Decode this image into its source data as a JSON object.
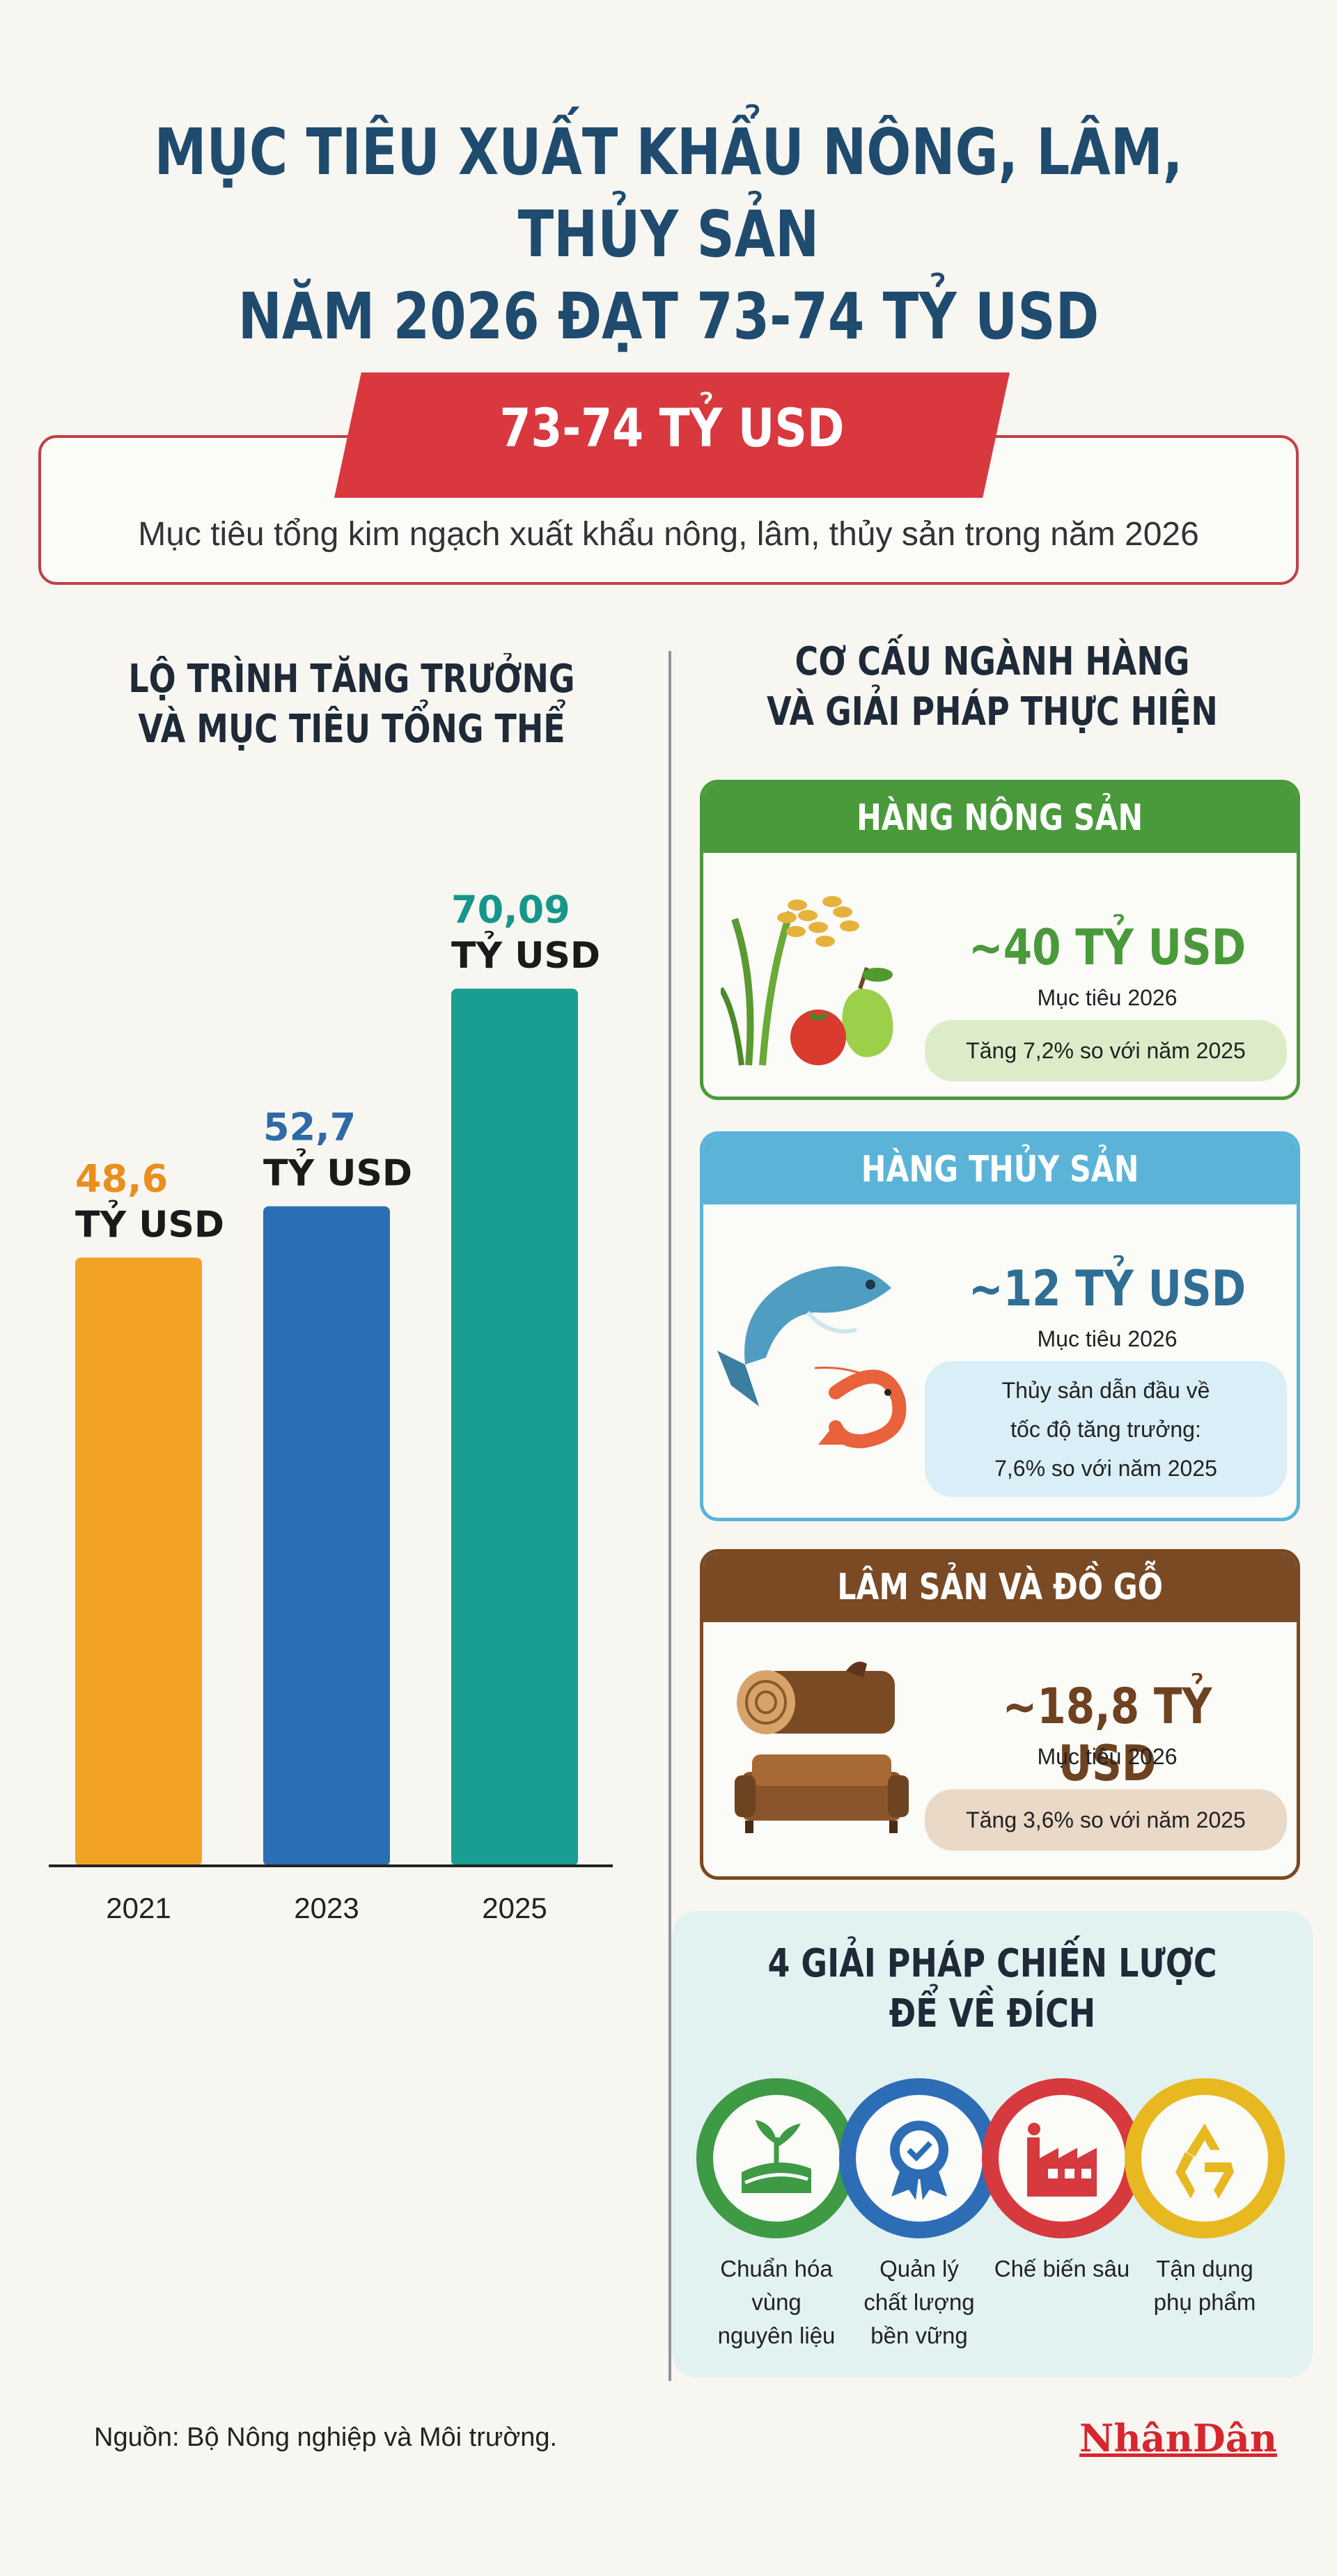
{
  "title_line1": "MỤC TIÊU XUẤT KHẨU NÔNG, LÂM, THỦY SẢN",
  "title_line2": "NĂM 2026 ĐẠT 73-74 TỶ USD",
  "target": {
    "value": "73-74 TỶ USD",
    "description": "Mục tiêu tổng kim ngạch xuất khẩu nông, lâm, thủy sản trong năm 2026"
  },
  "left_section": {
    "title_line1": "LỘ TRÌNH TĂNG TRƯỞNG",
    "title_line2": "VÀ MỤC TIÊU TỔNG THỂ"
  },
  "chart_data": {
    "type": "bar",
    "categories": [
      "2021",
      "2023",
      "2025"
    ],
    "values": [
      48.6,
      52.7,
      70.09
    ],
    "value_labels": [
      "48,6",
      "52,7",
      "70,09"
    ],
    "unit_label": "TỶ USD",
    "colors": [
      "#f2a324",
      "#2a6fb3",
      "#1a9e92"
    ],
    "value_colors": [
      "#e88f1e",
      "#2f6aa8",
      "#16968a"
    ],
    "ylim": [
      0,
      70.09
    ],
    "grid": false,
    "title": "",
    "xlabel": "",
    "ylabel": ""
  },
  "right_section": {
    "title_line1": "CƠ CẤU NGÀNH HÀNG",
    "title_line2": "VÀ GIẢI PHÁP THỰC HIỆN"
  },
  "cards": [
    {
      "header": "HÀNG NÔNG SẢN",
      "value": "~40 TỶ USD",
      "sub": "Mục tiêu 2026",
      "note_lines": [
        "Tăng 7,2% so với năm 2025"
      ],
      "color": "#4a9a3b",
      "icon": "rice-fruit-icon"
    },
    {
      "header": "HÀNG THỦY SẢN",
      "value": "~12 TỶ USD",
      "sub": "Mục tiêu 2026",
      "note_lines": [
        "Thủy sản dẫn đầu về",
        "tốc độ tăng trưởng:",
        "7,6% so với năm 2025"
      ],
      "color": "#5bb4d8",
      "value_color": "#2f6e95",
      "icon": "fish-shrimp-icon"
    },
    {
      "header": "LÂM SẢN VÀ ĐỒ GỖ",
      "value": "~18,8 TỶ USD",
      "sub": "Mục tiêu 2026",
      "note_lines": [
        "Tăng 3,6% so với năm 2025"
      ],
      "color": "#7a4a24",
      "icon": "log-sofa-icon"
    }
  ],
  "solutions": {
    "title_line1": "4 GIẢI PHÁP CHIẾN LƯỢC",
    "title_line2": "ĐỂ VỀ ĐÍCH",
    "items": [
      {
        "label_lines": [
          "Chuẩn hóa",
          "vùng",
          "nguyên liệu"
        ],
        "color": "#3e9a45",
        "icon": "field-sprout-icon"
      },
      {
        "label_lines": [
          "Quản lý",
          "chất lượng",
          "bền vững"
        ],
        "color": "#2d6db5",
        "icon": "quality-badge-icon"
      },
      {
        "label_lines": [
          "Chế biến sâu"
        ],
        "color": "#d6393e",
        "icon": "factory-icon"
      },
      {
        "label_lines": [
          "Tận dụng",
          "phụ phẩm"
        ],
        "color": "#e8b820",
        "icon": "recycle-icon"
      }
    ]
  },
  "source": "Nguồn: Bộ Nông nghiệp và Môi trường.",
  "logo": "NhânDân"
}
